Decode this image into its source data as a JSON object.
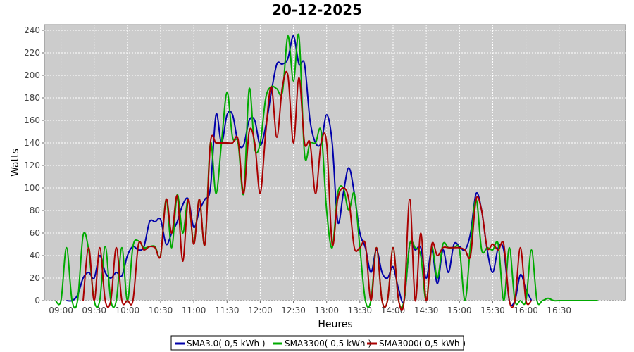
{
  "chart_data": {
    "type": "line",
    "title": "20-12-2025",
    "xlabel": "Heures",
    "ylabel": "Watts",
    "xlim": [
      "08:45",
      "17:30"
    ],
    "ylim": [
      0,
      245
    ],
    "x_ticks": [
      "09:00",
      "09:30",
      "10:00",
      "10:30",
      "11:00",
      "11:30",
      "12:00",
      "12:30",
      "13:00",
      "13:30",
      "14:00",
      "14:30",
      "15:00",
      "15:30",
      "16:00",
      "16:30"
    ],
    "y_ticks": [
      0,
      20,
      40,
      60,
      80,
      100,
      120,
      140,
      160,
      180,
      200,
      220,
      240
    ],
    "grid": true,
    "legend_position": "bottom",
    "series": [
      {
        "name": "SMA3.0( 0,5 kWh )",
        "color": "#0000aa",
        "points": [
          [
            "09:05",
            0
          ],
          [
            "09:10",
            0
          ],
          [
            "09:15",
            5
          ],
          [
            "09:20",
            20
          ],
          [
            "09:25",
            25
          ],
          [
            "09:30",
            20
          ],
          [
            "09:35",
            40
          ],
          [
            "09:40",
            25
          ],
          [
            "09:45",
            20
          ],
          [
            "09:50",
            25
          ],
          [
            "09:55",
            22
          ],
          [
            "10:00",
            40
          ],
          [
            "10:05",
            48
          ],
          [
            "10:10",
            45
          ],
          [
            "10:15",
            48
          ],
          [
            "10:20",
            70
          ],
          [
            "10:25",
            70
          ],
          [
            "10:30",
            72
          ],
          [
            "10:35",
            50
          ],
          [
            "10:40",
            60
          ],
          [
            "10:45",
            70
          ],
          [
            "10:50",
            85
          ],
          [
            "10:55",
            90
          ],
          [
            "11:00",
            65
          ],
          [
            "11:05",
            80
          ],
          [
            "11:10",
            90
          ],
          [
            "11:15",
            100
          ],
          [
            "11:20",
            165
          ],
          [
            "11:25",
            140
          ],
          [
            "11:30",
            165
          ],
          [
            "11:35",
            165
          ],
          [
            "11:40",
            140
          ],
          [
            "11:45",
            138
          ],
          [
            "11:50",
            160
          ],
          [
            "11:55",
            160
          ],
          [
            "12:00",
            138
          ],
          [
            "12:05",
            155
          ],
          [
            "12:10",
            185
          ],
          [
            "12:15",
            210
          ],
          [
            "12:20",
            210
          ],
          [
            "12:25",
            215
          ],
          [
            "12:30",
            235
          ],
          [
            "12:35",
            210
          ],
          [
            "12:40",
            210
          ],
          [
            "12:45",
            160
          ],
          [
            "12:50",
            140
          ],
          [
            "12:55",
            140
          ],
          [
            "13:00",
            165
          ],
          [
            "13:05",
            140
          ],
          [
            "13:10",
            70
          ],
          [
            "13:15",
            95
          ],
          [
            "13:20",
            118
          ],
          [
            "13:25",
            95
          ],
          [
            "13:30",
            60
          ],
          [
            "13:35",
            47
          ],
          [
            "13:40",
            25
          ],
          [
            "13:45",
            45
          ],
          [
            "13:50",
            25
          ],
          [
            "13:55",
            20
          ],
          [
            "14:00",
            30
          ],
          [
            "14:05",
            10
          ],
          [
            "14:10",
            0
          ],
          [
            "14:15",
            50
          ],
          [
            "14:20",
            45
          ],
          [
            "14:25",
            47
          ],
          [
            "14:30",
            20
          ],
          [
            "14:35",
            45
          ],
          [
            "14:40",
            15
          ],
          [
            "14:45",
            45
          ],
          [
            "14:50",
            25
          ],
          [
            "14:55",
            50
          ],
          [
            "15:00",
            48
          ],
          [
            "15:05",
            45
          ],
          [
            "15:10",
            60
          ],
          [
            "15:15",
            95
          ],
          [
            "15:20",
            80
          ],
          [
            "15:25",
            45
          ],
          [
            "15:30",
            25
          ],
          [
            "15:35",
            47
          ],
          [
            "15:40",
            45
          ],
          [
            "15:45",
            0
          ],
          [
            "15:50",
            0
          ],
          [
            "15:55",
            23
          ],
          [
            "16:00",
            10
          ],
          [
            "16:05",
            0
          ]
        ]
      },
      {
        "name": "SMA3300( 0,5 kWh )",
        "color": "#00aa00",
        "points": [
          [
            "08:55",
            0
          ],
          [
            "09:00",
            0
          ],
          [
            "09:05",
            47
          ],
          [
            "09:10",
            0
          ],
          [
            "09:15",
            0
          ],
          [
            "09:20",
            58
          ],
          [
            "09:25",
            45
          ],
          [
            "09:30",
            0
          ],
          [
            "09:35",
            0
          ],
          [
            "09:40",
            48
          ],
          [
            "09:45",
            0
          ],
          [
            "09:50",
            0
          ],
          [
            "09:55",
            47
          ],
          [
            "10:00",
            0
          ],
          [
            "10:05",
            48
          ],
          [
            "10:10",
            53
          ],
          [
            "10:15",
            47
          ],
          [
            "10:20",
            48
          ],
          [
            "10:25",
            48
          ],
          [
            "10:30",
            40
          ],
          [
            "10:35",
            90
          ],
          [
            "10:40",
            47
          ],
          [
            "10:45",
            94
          ],
          [
            "10:50",
            60
          ],
          [
            "10:55",
            90
          ],
          [
            "11:00",
            52
          ],
          [
            "11:05",
            90
          ],
          [
            "11:10",
            50
          ],
          [
            "11:15",
            140
          ],
          [
            "11:20",
            95
          ],
          [
            "11:25",
            140
          ],
          [
            "11:30",
            185
          ],
          [
            "11:35",
            145
          ],
          [
            "11:40",
            140
          ],
          [
            "11:45",
            95
          ],
          [
            "11:50",
            188
          ],
          [
            "11:55",
            135
          ],
          [
            "12:00",
            140
          ],
          [
            "12:05",
            180
          ],
          [
            "12:10",
            190
          ],
          [
            "12:15",
            188
          ],
          [
            "12:20",
            185
          ],
          [
            "12:25",
            235
          ],
          [
            "12:30",
            195
          ],
          [
            "12:35",
            235
          ],
          [
            "12:40",
            130
          ],
          [
            "12:45",
            140
          ],
          [
            "12:50",
            140
          ],
          [
            "12:55",
            150
          ],
          [
            "13:00",
            80
          ],
          [
            "13:05",
            47
          ],
          [
            "13:10",
            95
          ],
          [
            "13:15",
            100
          ],
          [
            "13:20",
            80
          ],
          [
            "13:25",
            95
          ],
          [
            "13:30",
            47
          ],
          [
            "13:35",
            0
          ],
          [
            "13:40",
            0
          ],
          [
            "13:45",
            47
          ],
          [
            "13:50",
            0
          ],
          [
            "13:55",
            0
          ],
          [
            "14:00",
            47
          ],
          [
            "14:05",
            0
          ],
          [
            "14:10",
            0
          ],
          [
            "14:15",
            50
          ],
          [
            "14:20",
            47
          ],
          [
            "14:25",
            40
          ],
          [
            "14:30",
            0
          ],
          [
            "14:35",
            47
          ],
          [
            "14:40",
            20
          ],
          [
            "14:45",
            50
          ],
          [
            "14:50",
            47
          ],
          [
            "14:55",
            47
          ],
          [
            "15:00",
            45
          ],
          [
            "15:05",
            0
          ],
          [
            "15:10",
            50
          ],
          [
            "15:15",
            90
          ],
          [
            "15:20",
            45
          ],
          [
            "15:25",
            47
          ],
          [
            "15:30",
            45
          ],
          [
            "15:35",
            50
          ],
          [
            "15:40",
            0
          ],
          [
            "15:45",
            47
          ],
          [
            "15:50",
            0
          ],
          [
            "15:55",
            0
          ],
          [
            "16:00",
            0
          ],
          [
            "16:05",
            45
          ],
          [
            "16:10",
            0
          ],
          [
            "16:15",
            0
          ],
          [
            "16:20",
            2
          ],
          [
            "16:25",
            0
          ],
          [
            "16:30",
            0
          ],
          [
            "16:40",
            0
          ],
          [
            "16:50",
            0
          ],
          [
            "17:00",
            0
          ],
          [
            "17:05",
            0
          ]
        ]
      },
      {
        "name": "SMA3000( 0,5 kWh )",
        "color": "#aa0000",
        "points": [
          [
            "09:20",
            0
          ],
          [
            "09:25",
            47
          ],
          [
            "09:30",
            0
          ],
          [
            "09:35",
            47
          ],
          [
            "09:40",
            0
          ],
          [
            "09:45",
            0
          ],
          [
            "09:50",
            47
          ],
          [
            "09:55",
            0
          ],
          [
            "10:00",
            0
          ],
          [
            "10:05",
            0
          ],
          [
            "10:10",
            50
          ],
          [
            "10:15",
            45
          ],
          [
            "10:20",
            48
          ],
          [
            "10:25",
            47
          ],
          [
            "10:30",
            40
          ],
          [
            "10:35",
            90
          ],
          [
            "10:40",
            60
          ],
          [
            "10:45",
            93
          ],
          [
            "10:50",
            35
          ],
          [
            "10:55",
            90
          ],
          [
            "11:00",
            50
          ],
          [
            "11:05",
            90
          ],
          [
            "11:10",
            50
          ],
          [
            "11:15",
            140
          ],
          [
            "11:20",
            140
          ],
          [
            "11:25",
            140
          ],
          [
            "11:30",
            140
          ],
          [
            "11:35",
            140
          ],
          [
            "11:40",
            143
          ],
          [
            "11:45",
            95
          ],
          [
            "11:50",
            150
          ],
          [
            "11:55",
            140
          ],
          [
            "12:00",
            95
          ],
          [
            "12:05",
            150
          ],
          [
            "12:10",
            190
          ],
          [
            "12:15",
            145
          ],
          [
            "12:20",
            190
          ],
          [
            "12:25",
            200
          ],
          [
            "12:30",
            140
          ],
          [
            "12:35",
            198
          ],
          [
            "12:40",
            140
          ],
          [
            "12:45",
            140
          ],
          [
            "12:50",
            95
          ],
          [
            "12:55",
            140
          ],
          [
            "13:00",
            140
          ],
          [
            "13:05",
            50
          ],
          [
            "13:10",
            90
          ],
          [
            "13:15",
            100
          ],
          [
            "13:20",
            90
          ],
          [
            "13:25",
            47
          ],
          [
            "13:30",
            47
          ],
          [
            "13:35",
            50
          ],
          [
            "13:40",
            0
          ],
          [
            "13:45",
            47
          ],
          [
            "13:50",
            0
          ],
          [
            "13:55",
            0
          ],
          [
            "14:00",
            47
          ],
          [
            "14:05",
            0
          ],
          [
            "14:10",
            0
          ],
          [
            "14:15",
            90
          ],
          [
            "14:20",
            0
          ],
          [
            "14:25",
            60
          ],
          [
            "14:30",
            0
          ],
          [
            "14:35",
            50
          ],
          [
            "14:40",
            40
          ],
          [
            "14:45",
            47
          ],
          [
            "14:50",
            47
          ],
          [
            "14:55",
            47
          ],
          [
            "15:00",
            47
          ],
          [
            "15:05",
            45
          ],
          [
            "15:10",
            40
          ],
          [
            "15:15",
            90
          ],
          [
            "15:20",
            80
          ],
          [
            "15:25",
            47
          ],
          [
            "15:30",
            50
          ],
          [
            "15:35",
            45
          ],
          [
            "15:40",
            50
          ],
          [
            "15:45",
            0
          ],
          [
            "15:50",
            0
          ],
          [
            "15:55",
            47
          ],
          [
            "16:00",
            0
          ],
          [
            "16:05",
            0
          ]
        ]
      }
    ]
  }
}
